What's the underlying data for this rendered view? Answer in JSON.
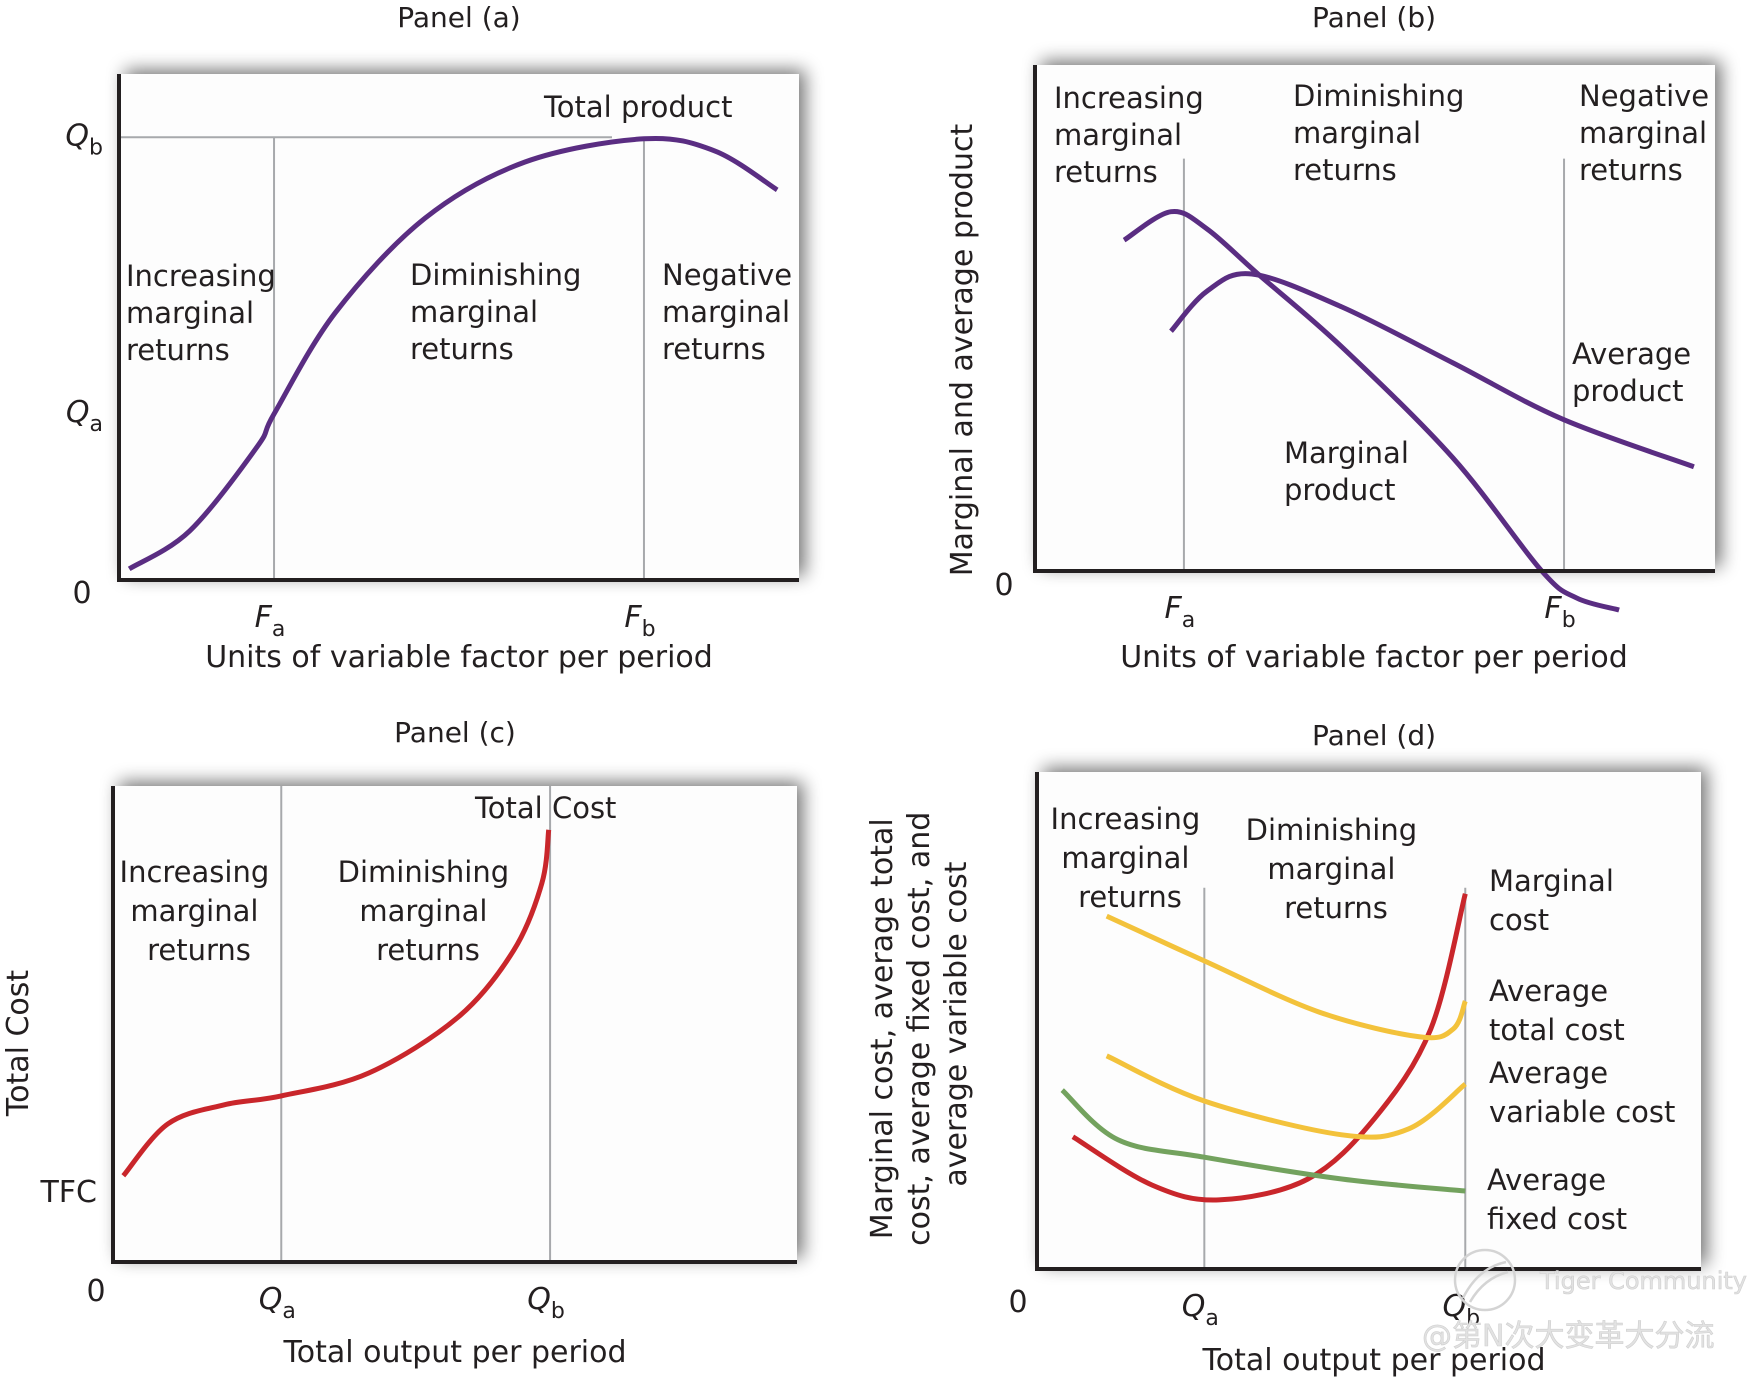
{
  "colors": {
    "purple": "#5a2d82",
    "red": "#c9262b",
    "yellow": "#f3c23b",
    "green": "#73a25e",
    "axis": "#231f20",
    "guide": "#a7a9ac"
  },
  "watermark": {
    "brand": "Tiger Community",
    "handle": "@第N次大变革大分流"
  },
  "chart_data": [
    {
      "id": "a",
      "type": "line",
      "title": "Panel (a)",
      "xlabel": "Units of variable factor per period",
      "ylabel": "",
      "xlim": [
        0,
        10
      ],
      "ylim": [
        0,
        10
      ],
      "origin_label": "0",
      "x_ticks": [
        {
          "main": "F",
          "sub": "a",
          "x": 2.28
        },
        {
          "main": "F",
          "sub": "b",
          "x": 7.72
        }
      ],
      "y_ticks": [
        {
          "main": "Q",
          "sub": "b",
          "y": 8.75
        },
        {
          "main": "Q",
          "sub": "a",
          "y": 3.28
        }
      ],
      "guides": [
        {
          "orient": "v",
          "x": 2.28,
          "from": 0,
          "to": 8.75
        },
        {
          "orient": "v",
          "x": 7.72,
          "from": 0,
          "to": 8.75
        },
        {
          "orient": "h",
          "y": 8.75,
          "from": 0,
          "to": 7.25
        }
      ],
      "regions": [
        {
          "lines": [
            "Increasing",
            "marginal",
            "returns"
          ]
        },
        {
          "lines": [
            "Diminishing",
            "marginal",
            "returns"
          ]
        },
        {
          "lines": [
            "Negative",
            "marginal",
            "returns"
          ]
        }
      ],
      "series": [
        {
          "name": "Total product",
          "color": "purple",
          "points": [
            [
              0.15,
              0.22
            ],
            [
              1.04,
              0.97
            ],
            [
              2.03,
              2.63
            ],
            [
              2.28,
              3.28
            ],
            [
              3.18,
              5.28
            ],
            [
              4.5,
              7.15
            ],
            [
              5.97,
              8.26
            ],
            [
              7.72,
              8.72
            ],
            [
              8.76,
              8.48
            ],
            [
              9.68,
              7.71
            ]
          ]
        }
      ]
    },
    {
      "id": "b",
      "type": "line",
      "title": "Panel (b)",
      "xlabel": "Units of variable factor per period",
      "ylabel": "Marginal and average product",
      "xlim": [
        0,
        10
      ],
      "ylim": [
        0,
        10
      ],
      "origin_label": "0",
      "x_ticks": [
        {
          "main": "F",
          "sub": "a",
          "x": 2.19
        },
        {
          "main": "F",
          "sub": "b",
          "x": 7.78
        }
      ],
      "y_ticks": [],
      "guides": [
        {
          "orient": "v",
          "x": 2.19,
          "from": 0,
          "to": 8.15
        },
        {
          "orient": "v",
          "x": 7.78,
          "from": 0,
          "to": 8.15
        }
      ],
      "regions": [
        {
          "lines": [
            "Increasing",
            "marginal",
            "returns"
          ]
        },
        {
          "lines": [
            "Diminishing",
            "marginal",
            "returns"
          ]
        },
        {
          "lines": [
            "Negative",
            "marginal",
            "returns"
          ]
        }
      ],
      "series": [
        {
          "name": "Marginal product",
          "label_lines": [
            "Marginal",
            "product"
          ],
          "color": "purple",
          "points": [
            [
              1.31,
              6.54
            ],
            [
              2.0,
              7.1
            ],
            [
              2.53,
              6.76
            ],
            [
              3.28,
              5.87
            ],
            [
              4.51,
              4.43
            ],
            [
              6.15,
              2.23
            ],
            [
              7.44,
              0.02
            ],
            [
              7.96,
              -0.53
            ],
            [
              8.59,
              -0.77
            ]
          ]
        },
        {
          "name": "Average product",
          "label_lines": [
            "Average",
            "product"
          ],
          "color": "purple",
          "points": [
            [
              2.0,
              4.74
            ],
            [
              2.53,
              5.53
            ],
            [
              3.19,
              5.87
            ],
            [
              4.51,
              5.22
            ],
            [
              6.15,
              4.11
            ],
            [
              7.76,
              3.0
            ],
            [
              9.69,
              2.06
            ]
          ]
        }
      ]
    },
    {
      "id": "c",
      "type": "line",
      "title": "Panel (c)",
      "xlabel": "Total output per period",
      "ylabel": "Total Cost",
      "xlim": [
        0,
        10
      ],
      "ylim": [
        0,
        10
      ],
      "origin_label": "0",
      "x_ticks": [
        {
          "main": "Q",
          "sub": "a",
          "x": 2.46
        },
        {
          "main": "Q",
          "sub": "b",
          "x": 6.39
        }
      ],
      "y_ticks": [
        {
          "main": "TFC",
          "sub": "",
          "y": 1.43
        }
      ],
      "guides": [
        {
          "orient": "v",
          "x": 2.46,
          "from": 0,
          "to": 10
        },
        {
          "orient": "v",
          "x": 6.39,
          "from": 0,
          "to": 10
        }
      ],
      "regions": [
        {
          "lines": [
            "Increasing",
            "marginal",
            "returns"
          ]
        },
        {
          "lines": [
            "Diminishing",
            "marginal",
            "returns"
          ]
        }
      ],
      "series": [
        {
          "name": "Total Cost",
          "color": "red",
          "points": [
            [
              0.15,
              1.81
            ],
            [
              0.8,
              2.9
            ],
            [
              1.62,
              3.3
            ],
            [
              2.46,
              3.49
            ],
            [
              3.74,
              3.97
            ],
            [
              5.05,
              5.15
            ],
            [
              5.86,
              6.55
            ],
            [
              6.27,
              7.96
            ],
            [
              6.37,
              9.08
            ]
          ]
        }
      ]
    },
    {
      "id": "d",
      "type": "line",
      "title": "Panel (d)",
      "xlabel": "Total output per period",
      "ylabel_lines": [
        "Marginal cost, average total",
        "cost, average fixed cost, and",
        "average variable cost"
      ],
      "xlim": [
        0,
        10
      ],
      "ylim": [
        0,
        10
      ],
      "origin_label": "0",
      "x_ticks": [
        {
          "main": "Q",
          "sub": "a",
          "x": 2.52
        },
        {
          "main": "Q",
          "sub": "b",
          "x": 6.45
        }
      ],
      "y_ticks": [],
      "guides": [
        {
          "orient": "v",
          "x": 2.52,
          "from": 0,
          "to": 7.67
        },
        {
          "orient": "v",
          "x": 6.45,
          "from": 0,
          "to": 7.67
        }
      ],
      "regions": [
        {
          "lines": [
            "Increasing",
            "marginal",
            "returns"
          ]
        },
        {
          "lines": [
            "Diminishing",
            "marginal",
            "returns"
          ]
        }
      ],
      "series": [
        {
          "name": "Marginal cost",
          "label_lines": [
            "Marginal",
            "cost"
          ],
          "color": "red",
          "points": [
            [
              0.54,
              2.66
            ],
            [
              1.73,
              1.69
            ],
            [
              2.74,
              1.39
            ],
            [
              4.08,
              1.81
            ],
            [
              5.09,
              3.04
            ],
            [
              5.93,
              4.83
            ],
            [
              6.45,
              7.55
            ]
          ]
        },
        {
          "name": "Average total cost",
          "label_lines": [
            "Average",
            "total cost"
          ],
          "color": "yellow",
          "points": [
            [
              1.05,
              7.1
            ],
            [
              2.52,
              6.2
            ],
            [
              4.25,
              5.17
            ],
            [
              5.77,
              4.67
            ],
            [
              6.27,
              4.83
            ],
            [
              6.45,
              5.39
            ]
          ]
        },
        {
          "name": "Average variable cost",
          "label_lines": [
            "Average",
            "variable cost"
          ],
          "color": "yellow",
          "points": [
            [
              1.05,
              4.29
            ],
            [
              2.52,
              3.38
            ],
            [
              4.59,
              2.7
            ],
            [
              5.6,
              2.82
            ],
            [
              6.45,
              3.72
            ]
          ]
        },
        {
          "name": "Average fixed cost",
          "label_lines": [
            "Average",
            "fixed cost"
          ],
          "color": "green",
          "points": [
            [
              0.38,
              3.6
            ],
            [
              1.22,
              2.6
            ],
            [
              2.52,
              2.25
            ],
            [
              4.59,
              1.81
            ],
            [
              6.45,
              1.57
            ]
          ]
        }
      ]
    }
  ]
}
